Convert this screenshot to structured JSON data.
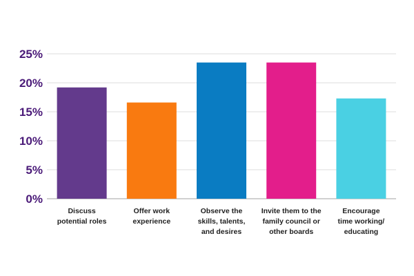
{
  "chart_data": {
    "type": "bar",
    "title": "",
    "xlabel": "",
    "ylabel": "",
    "categories": [
      [
        "Discuss",
        "potential roles"
      ],
      [
        "Offer work",
        "experience"
      ],
      [
        "Observe the",
        "skills, talents,",
        "and desires"
      ],
      [
        "Invite them to the",
        "family council or",
        "other boards"
      ],
      [
        "Encourage",
        "time working/",
        "educating"
      ]
    ],
    "values": [
      19.2,
      16.6,
      23.5,
      23.5,
      17.3
    ],
    "colors": [
      "#633a8c",
      "#f97a10",
      "#0a7cc2",
      "#e31e8b",
      "#4ad0e3"
    ],
    "ylim": [
      0,
      25
    ],
    "yticks": [
      0,
      5,
      10,
      15,
      20,
      25
    ],
    "ytick_labels": [
      "0%",
      "5%",
      "10%",
      "15%",
      "20%",
      "25%"
    ],
    "grid": true,
    "legend": "none"
  }
}
